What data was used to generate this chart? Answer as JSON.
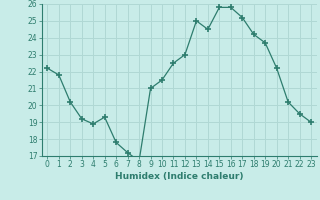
{
  "x": [
    0,
    1,
    2,
    3,
    4,
    5,
    6,
    7,
    8,
    9,
    10,
    11,
    12,
    13,
    14,
    15,
    16,
    17,
    18,
    19,
    20,
    21,
    22,
    23
  ],
  "y": [
    22.2,
    21.8,
    20.2,
    19.2,
    18.9,
    19.3,
    17.8,
    17.2,
    16.7,
    21.0,
    21.5,
    22.5,
    23.0,
    25.0,
    24.5,
    25.8,
    25.8,
    25.2,
    24.2,
    23.7,
    22.2,
    20.2,
    19.5,
    19.0
  ],
  "line_color": "#2e7d6e",
  "marker": "+",
  "marker_size": 4,
  "marker_lw": 1.2,
  "bg_color": "#c8ece8",
  "grid_color": "#b0d8d4",
  "xlabel": "Humidex (Indice chaleur)",
  "ylim": [
    17,
    26
  ],
  "xlim": [
    -0.5,
    23.5
  ],
  "yticks": [
    17,
    18,
    19,
    20,
    21,
    22,
    23,
    24,
    25,
    26
  ],
  "xticks": [
    0,
    1,
    2,
    3,
    4,
    5,
    6,
    7,
    8,
    9,
    10,
    11,
    12,
    13,
    14,
    15,
    16,
    17,
    18,
    19,
    20,
    21,
    22,
    23
  ],
  "xlabel_fontsize": 6.5,
  "tick_fontsize": 5.5,
  "line_width": 0.9
}
